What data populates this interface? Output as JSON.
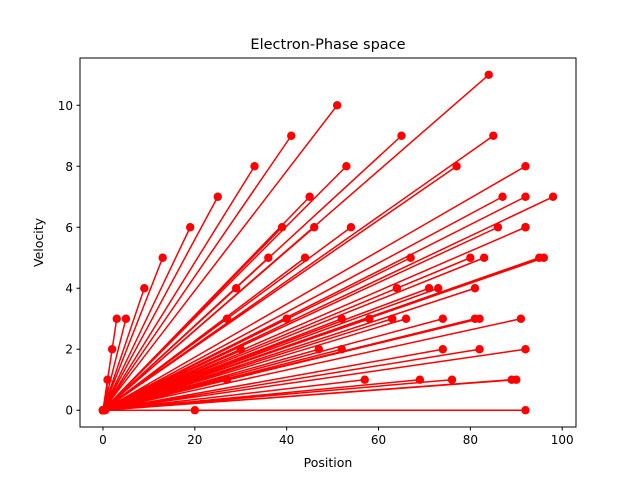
{
  "chart_data": {
    "type": "line",
    "title": "Electron-Phase space",
    "xlabel": "Position",
    "ylabel": "Velocity",
    "xlim": [
      -5,
      103
    ],
    "ylim": [
      -0.55,
      11.55
    ],
    "xticks": [
      0,
      20,
      40,
      60,
      80,
      100
    ],
    "yticks": [
      0,
      2,
      4,
      6,
      8,
      10
    ],
    "grid": false,
    "legend": "none",
    "series": [
      {
        "color": "#ff0000",
        "marker": "circle",
        "x": [
          0,
          0.5,
          1,
          0,
          2,
          0,
          3,
          0,
          5,
          0,
          9,
          0,
          13,
          0,
          19,
          0,
          25,
          0,
          33,
          0,
          41,
          0,
          51,
          0,
          65,
          0,
          84,
          0,
          85,
          0,
          77,
          0,
          92,
          0,
          87,
          0,
          92,
          0,
          98,
          0,
          95,
          0,
          96,
          0,
          92,
          0,
          86,
          0,
          80,
          0,
          83,
          0,
          81,
          0,
          71,
          0,
          73,
          0,
          67,
          0,
          64,
          0,
          54,
          0,
          44,
          0,
          39,
          0,
          29,
          0,
          27,
          0,
          36,
          0,
          46,
          0,
          52,
          0,
          58,
          0,
          63,
          0,
          74,
          0,
          81,
          0,
          91,
          0,
          92,
          0,
          89,
          0,
          82,
          0,
          74,
          0,
          66,
          0,
          52,
          0,
          40,
          0,
          27,
          0,
          20,
          0,
          45,
          0,
          53,
          0,
          30,
          0,
          47,
          0,
          57,
          0,
          69,
          0,
          76,
          0,
          82,
          0,
          90,
          0,
          92,
          0,
          92
        ],
        "y": [
          0,
          0,
          1,
          0,
          2,
          0,
          3,
          0,
          3,
          0,
          4,
          0,
          5,
          0,
          6,
          0,
          7,
          0,
          8,
          0,
          9,
          0,
          10,
          0,
          9,
          0,
          11,
          0,
          9,
          0,
          8,
          0,
          8,
          0,
          7,
          0,
          7,
          0,
          7,
          0,
          5,
          0,
          5,
          0,
          6,
          0,
          6,
          0,
          5,
          0,
          5,
          0,
          4,
          0,
          4,
          0,
          4,
          0,
          5,
          0,
          4,
          0,
          6,
          0,
          5,
          0,
          6,
          0,
          4,
          0,
          3,
          0,
          5,
          0,
          6,
          0,
          3,
          0,
          3,
          0,
          3,
          0,
          3,
          0,
          3,
          0,
          3,
          0,
          2,
          0,
          1,
          0,
          2,
          0,
          2,
          0,
          3,
          0,
          2,
          0,
          3,
          0,
          1,
          0,
          0,
          0,
          7,
          0,
          8,
          0,
          2,
          0,
          2,
          0,
          1,
          0,
          1,
          0,
          1,
          0,
          3,
          0,
          1,
          0,
          6,
          0,
          0
        ]
      }
    ]
  }
}
